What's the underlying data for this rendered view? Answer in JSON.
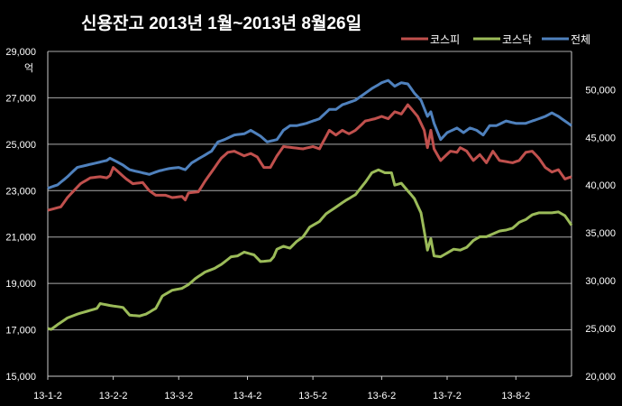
{
  "chart_data": {
    "type": "line",
    "title": "신용잔고 2013년 1월~2013년 8월26일",
    "left_axis_unit": "억",
    "x_tick_labels": [
      "13-1-2",
      "13-2-2",
      "13-3-2",
      "13-4-2",
      "13-5-2",
      "13-6-2",
      "13-7-2",
      "13-8-2"
    ],
    "x_tick_index": [
      0,
      20,
      40,
      61,
      81,
      102,
      122,
      143
    ],
    "x_count": 161,
    "left_ylim": [
      15000,
      29000
    ],
    "left_ticks": [
      "15,000",
      "17,000",
      "19,000",
      "21,000",
      "23,000",
      "25,000",
      "27,000",
      "29,000"
    ],
    "left_tick_values": [
      15000,
      17000,
      19000,
      21000,
      23000,
      25000,
      27000,
      29000
    ],
    "right_ylim": [
      20000,
      54000
    ],
    "right_ticks": [
      "20,000",
      "25,000",
      "30,000",
      "35,000",
      "40,000",
      "45,000",
      "50,000"
    ],
    "right_tick_values": [
      20000,
      25000,
      30000,
      35000,
      40000,
      45000,
      50000
    ],
    "grid": true,
    "legend_position": "top-right",
    "colors": {
      "background": "#000000",
      "grid": "#aaaaaa",
      "text": "#ffffff"
    },
    "series": [
      {
        "name": "코스피",
        "axis": "left",
        "color": "#c0504d",
        "keyframes": [
          [
            0,
            22150
          ],
          [
            4,
            22300
          ],
          [
            6,
            22700
          ],
          [
            8,
            23000
          ],
          [
            10,
            23300
          ],
          [
            13,
            23550
          ],
          [
            16,
            23600
          ],
          [
            18,
            23550
          ],
          [
            19,
            23650
          ],
          [
            20,
            24000
          ],
          [
            22,
            23750
          ],
          [
            24,
            23500
          ],
          [
            26,
            23300
          ],
          [
            29,
            23350
          ],
          [
            31,
            23000
          ],
          [
            33,
            22800
          ],
          [
            36,
            22800
          ],
          [
            38,
            22700
          ],
          [
            41,
            22750
          ],
          [
            42,
            22600
          ],
          [
            43,
            22900
          ],
          [
            46,
            22950
          ],
          [
            48,
            23400
          ],
          [
            51,
            24000
          ],
          [
            53,
            24400
          ],
          [
            55,
            24650
          ],
          [
            57,
            24700
          ],
          [
            60,
            24500
          ],
          [
            62,
            24600
          ],
          [
            64,
            24450
          ],
          [
            66,
            24000
          ],
          [
            68,
            24000
          ],
          [
            70,
            24500
          ],
          [
            72,
            24900
          ],
          [
            75,
            24850
          ],
          [
            78,
            24800
          ],
          [
            81,
            24900
          ],
          [
            83,
            24800
          ],
          [
            86,
            25600
          ],
          [
            88,
            25400
          ],
          [
            90,
            25600
          ],
          [
            92,
            25450
          ],
          [
            94,
            25600
          ],
          [
            97,
            26000
          ],
          [
            100,
            26100
          ],
          [
            102,
            26200
          ],
          [
            104,
            26100
          ],
          [
            106,
            26400
          ],
          [
            108,
            26300
          ],
          [
            110,
            26700
          ],
          [
            113,
            26200
          ],
          [
            115,
            25600
          ],
          [
            116,
            24850
          ],
          [
            117,
            25600
          ],
          [
            118,
            24800
          ],
          [
            120,
            24300
          ],
          [
            123,
            24700
          ],
          [
            125,
            24650
          ],
          [
            126,
            24850
          ],
          [
            128,
            24700
          ],
          [
            130,
            24300
          ],
          [
            132,
            24550
          ],
          [
            134,
            24200
          ],
          [
            136,
            24700
          ],
          [
            138,
            24300
          ],
          [
            142,
            24200
          ],
          [
            144,
            24300
          ],
          [
            146,
            24650
          ],
          [
            148,
            24700
          ],
          [
            150,
            24400
          ],
          [
            152,
            24000
          ],
          [
            154,
            23800
          ],
          [
            156,
            23900
          ],
          [
            158,
            23500
          ],
          [
            160,
            23600
          ]
        ]
      },
      {
        "name": "코스닥",
        "axis": "right",
        "color": "#9bbb59",
        "keyframes": [
          [
            0,
            25000
          ],
          [
            1,
            24900
          ],
          [
            3,
            25400
          ],
          [
            6,
            26100
          ],
          [
            9,
            26500
          ],
          [
            12,
            26800
          ],
          [
            15,
            27100
          ],
          [
            16,
            27600
          ],
          [
            19,
            27400
          ],
          [
            21,
            27300
          ],
          [
            23,
            27200
          ],
          [
            25,
            26400
          ],
          [
            28,
            26300
          ],
          [
            30,
            26500
          ],
          [
            33,
            27100
          ],
          [
            35,
            28400
          ],
          [
            38,
            29000
          ],
          [
            41,
            29200
          ],
          [
            43,
            29600
          ],
          [
            45,
            30200
          ],
          [
            48,
            30900
          ],
          [
            51,
            31300
          ],
          [
            53,
            31700
          ],
          [
            56,
            32500
          ],
          [
            58,
            32600
          ],
          [
            60,
            33000
          ],
          [
            63,
            32700
          ],
          [
            65,
            32000
          ],
          [
            68,
            32100
          ],
          [
            69,
            32500
          ],
          [
            70,
            33300
          ],
          [
            72,
            33600
          ],
          [
            74,
            33400
          ],
          [
            76,
            34100
          ],
          [
            78,
            34600
          ],
          [
            80,
            35600
          ],
          [
            83,
            36200
          ],
          [
            85,
            37000
          ],
          [
            88,
            37700
          ],
          [
            91,
            38400
          ],
          [
            94,
            39000
          ],
          [
            97,
            40300
          ],
          [
            99,
            41300
          ],
          [
            101,
            41600
          ],
          [
            103,
            41300
          ],
          [
            105,
            41300
          ],
          [
            106,
            40000
          ],
          [
            108,
            40200
          ],
          [
            110,
            39400
          ],
          [
            112,
            38600
          ],
          [
            114,
            37100
          ],
          [
            115,
            35200
          ],
          [
            116,
            33200
          ],
          [
            117,
            34400
          ],
          [
            118,
            32600
          ],
          [
            120,
            32500
          ],
          [
            122,
            32900
          ],
          [
            124,
            33300
          ],
          [
            126,
            33200
          ],
          [
            128,
            33500
          ],
          [
            130,
            34200
          ],
          [
            132,
            34600
          ],
          [
            134,
            34600
          ],
          [
            136,
            34900
          ],
          [
            138,
            35200
          ],
          [
            140,
            35300
          ],
          [
            142,
            35500
          ],
          [
            144,
            36100
          ],
          [
            146,
            36400
          ],
          [
            148,
            36900
          ],
          [
            150,
            37100
          ],
          [
            152,
            37100
          ],
          [
            154,
            37100
          ],
          [
            156,
            37200
          ],
          [
            158,
            36800
          ],
          [
            160,
            35800
          ]
        ]
      },
      {
        "name": "전체",
        "axis": "left",
        "color": "#4f81bd",
        "keyframes": [
          [
            0,
            23100
          ],
          [
            3,
            23250
          ],
          [
            6,
            23600
          ],
          [
            9,
            24000
          ],
          [
            12,
            24100
          ],
          [
            15,
            24200
          ],
          [
            18,
            24300
          ],
          [
            19,
            24400
          ],
          [
            21,
            24250
          ],
          [
            23,
            24100
          ],
          [
            25,
            23900
          ],
          [
            28,
            23800
          ],
          [
            31,
            23700
          ],
          [
            34,
            23850
          ],
          [
            37,
            23950
          ],
          [
            40,
            24000
          ],
          [
            42,
            23900
          ],
          [
            44,
            24200
          ],
          [
            47,
            24450
          ],
          [
            50,
            24700
          ],
          [
            52,
            25100
          ],
          [
            54,
            25200
          ],
          [
            57,
            25400
          ],
          [
            60,
            25450
          ],
          [
            62,
            25600
          ],
          [
            65,
            25350
          ],
          [
            67,
            25100
          ],
          [
            70,
            25200
          ],
          [
            72,
            25600
          ],
          [
            74,
            25800
          ],
          [
            76,
            25800
          ],
          [
            79,
            25900
          ],
          [
            81,
            26000
          ],
          [
            83,
            26100
          ],
          [
            86,
            26500
          ],
          [
            88,
            26500
          ],
          [
            90,
            26700
          ],
          [
            92,
            26800
          ],
          [
            94,
            26900
          ],
          [
            96,
            27100
          ],
          [
            99,
            27400
          ],
          [
            102,
            27650
          ],
          [
            104,
            27750
          ],
          [
            106,
            27500
          ],
          [
            108,
            27650
          ],
          [
            110,
            27600
          ],
          [
            112,
            27200
          ],
          [
            114,
            26900
          ],
          [
            115,
            26550
          ],
          [
            116,
            26200
          ],
          [
            117,
            26400
          ],
          [
            118,
            25900
          ],
          [
            120,
            25200
          ],
          [
            122,
            25500
          ],
          [
            125,
            25700
          ],
          [
            127,
            25500
          ],
          [
            129,
            25700
          ],
          [
            131,
            25600
          ],
          [
            133,
            25400
          ],
          [
            135,
            25800
          ],
          [
            137,
            25800
          ],
          [
            140,
            26000
          ],
          [
            143,
            25900
          ],
          [
            146,
            25900
          ],
          [
            148,
            26000
          ],
          [
            150,
            26100
          ],
          [
            152,
            26200
          ],
          [
            154,
            26350
          ],
          [
            156,
            26200
          ],
          [
            158,
            26000
          ],
          [
            160,
            25800
          ]
        ]
      }
    ]
  }
}
